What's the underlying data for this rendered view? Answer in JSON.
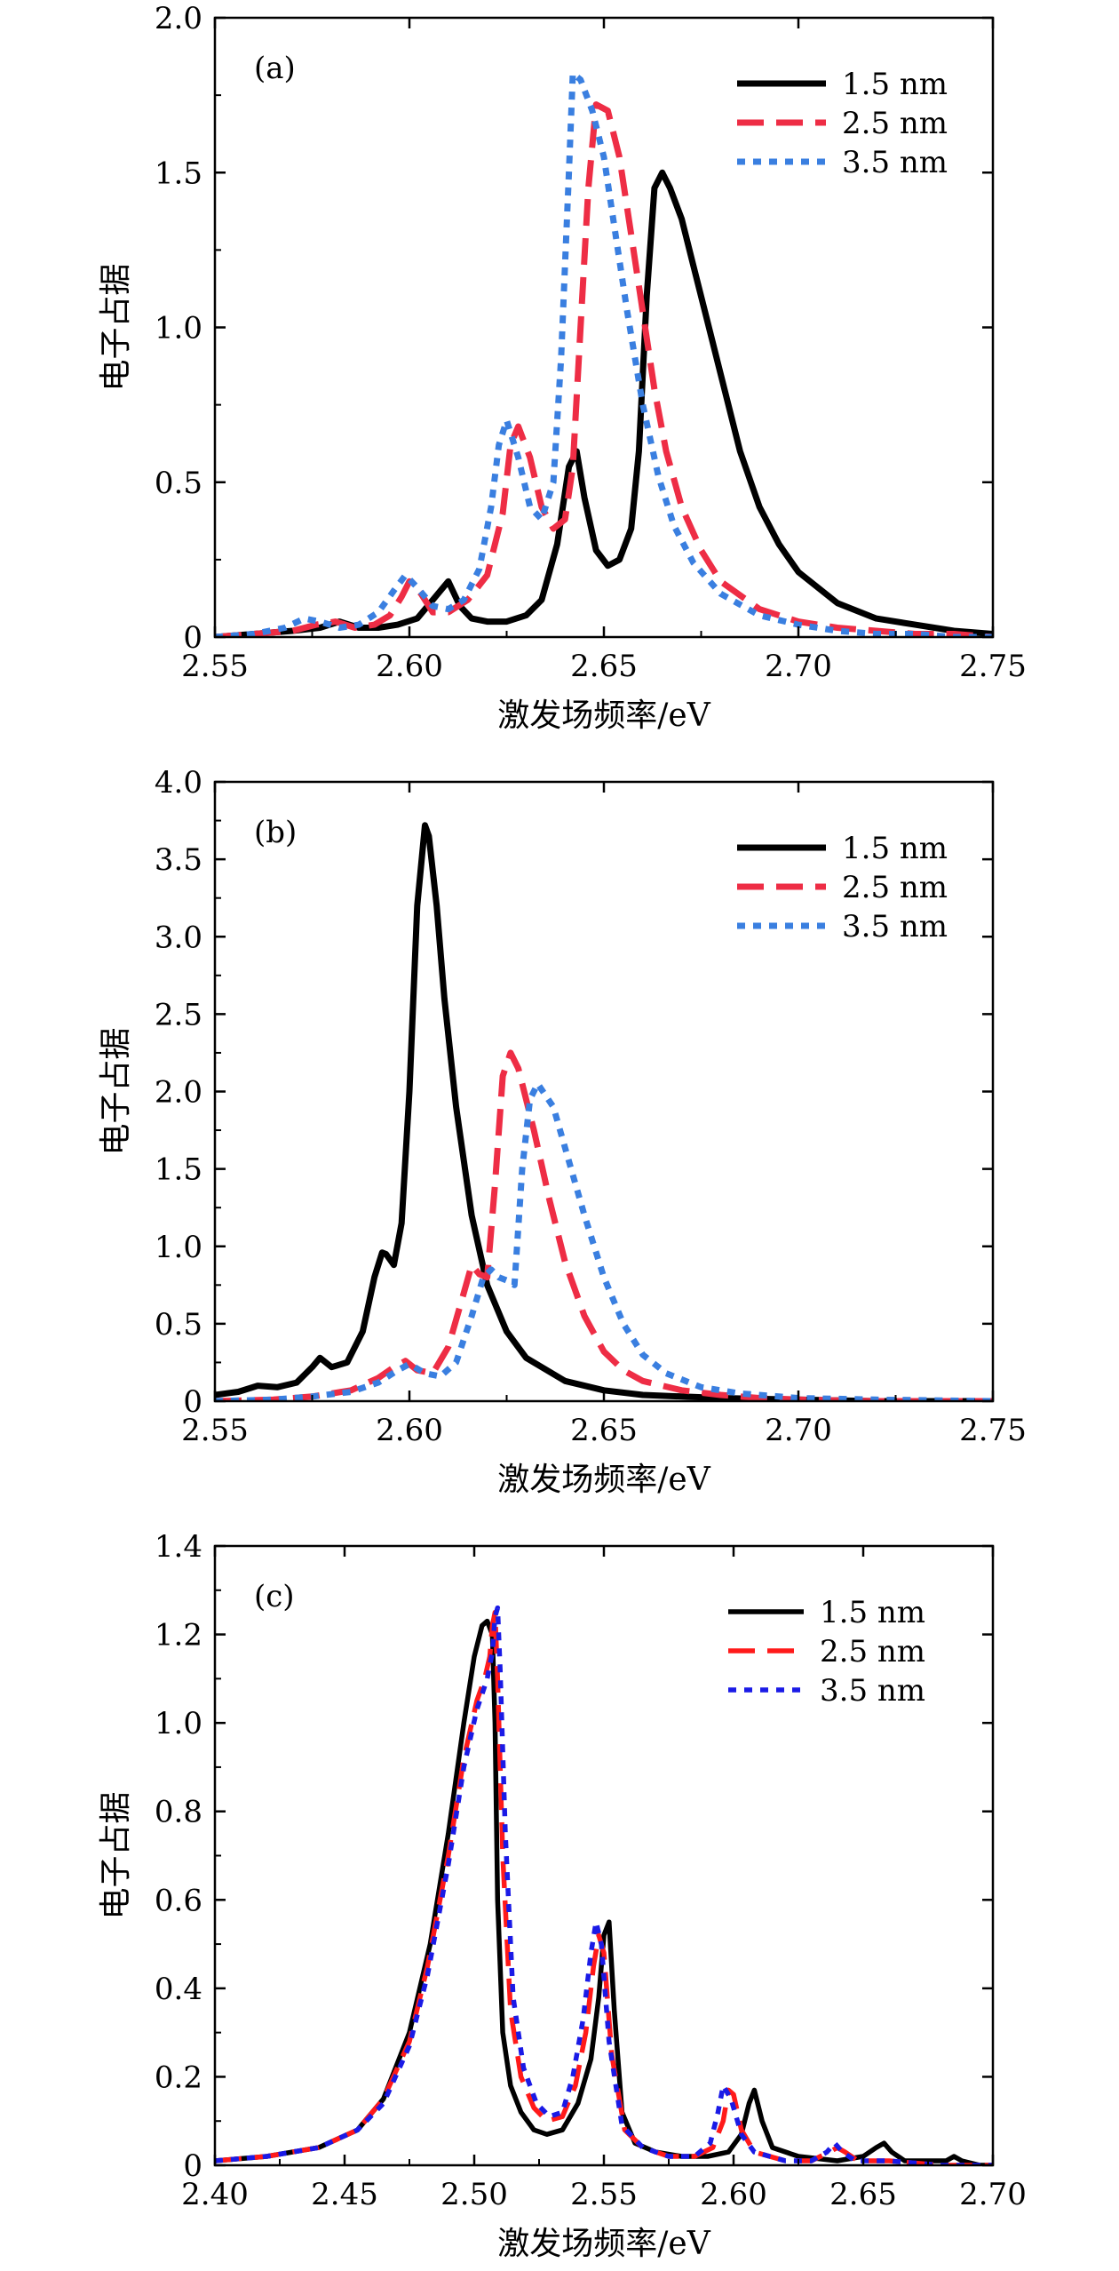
{
  "figure": {
    "colors": {
      "s1": "#000000",
      "s2": "#ee2d45",
      "s3": "#3a7fe0",
      "s2c": "#ff1a1a",
      "s3c": "#1a1ae6"
    }
  },
  "chart_data": [
    {
      "type": "line",
      "panel_label": "(a)",
      "xlabel": "激发场频率/eV",
      "ylabel": "电子占据",
      "xlim": [
        2.55,
        2.75
      ],
      "ylim": [
        0,
        2.0
      ],
      "xticks": [
        2.55,
        2.6,
        2.65,
        2.7,
        2.75
      ],
      "xtick_labels": [
        "2.55",
        "2.60",
        "2.65",
        "2.70",
        "2.75"
      ],
      "yticks": [
        0,
        0.5,
        1.0,
        1.5,
        2.0
      ],
      "ytick_labels": [
        "0",
        "0.5",
        "1.0",
        "1.5",
        "2.0"
      ],
      "legend_position": "top-right",
      "series": [
        {
          "name": "1.5 nm",
          "style": "solid",
          "color": "#000000",
          "x": [
            2.55,
            2.56,
            2.57,
            2.577,
            2.582,
            2.587,
            2.592,
            2.597,
            2.602,
            2.606,
            2.61,
            2.613,
            2.616,
            2.62,
            2.625,
            2.63,
            2.634,
            2.638,
            2.641,
            2.643,
            2.645,
            2.648,
            2.651,
            2.654,
            2.657,
            2.659,
            2.661,
            2.663,
            2.665,
            2.667,
            2.67,
            2.673,
            2.676,
            2.68,
            2.685,
            2.69,
            2.695,
            2.7,
            2.71,
            2.72,
            2.73,
            2.74,
            2.75
          ],
          "y": [
            0.0,
            0.01,
            0.02,
            0.03,
            0.05,
            0.03,
            0.03,
            0.04,
            0.06,
            0.12,
            0.18,
            0.1,
            0.06,
            0.05,
            0.05,
            0.07,
            0.12,
            0.3,
            0.55,
            0.6,
            0.45,
            0.28,
            0.23,
            0.25,
            0.35,
            0.6,
            1.1,
            1.45,
            1.5,
            1.45,
            1.35,
            1.2,
            1.05,
            0.85,
            0.6,
            0.42,
            0.3,
            0.21,
            0.11,
            0.06,
            0.04,
            0.02,
            0.01
          ]
        },
        {
          "name": "2.5 nm",
          "style": "dashed",
          "color": "#ee2d45",
          "x": [
            2.55,
            2.56,
            2.57,
            2.576,
            2.581,
            2.586,
            2.591,
            2.595,
            2.598,
            2.6,
            2.603,
            2.606,
            2.61,
            2.615,
            2.62,
            2.624,
            2.626,
            2.628,
            2.631,
            2.634,
            2.637,
            2.64,
            2.642,
            2.644,
            2.646,
            2.648,
            2.651,
            2.654,
            2.657,
            2.66,
            2.663,
            2.666,
            2.67,
            2.675,
            2.68,
            2.69,
            2.7,
            2.71,
            2.72,
            2.73,
            2.74,
            2.75
          ],
          "y": [
            0.0,
            0.01,
            0.02,
            0.04,
            0.05,
            0.03,
            0.04,
            0.07,
            0.13,
            0.18,
            0.14,
            0.08,
            0.08,
            0.12,
            0.2,
            0.4,
            0.62,
            0.68,
            0.58,
            0.42,
            0.35,
            0.38,
            0.55,
            1.0,
            1.45,
            1.72,
            1.7,
            1.55,
            1.3,
            1.05,
            0.8,
            0.6,
            0.42,
            0.28,
            0.18,
            0.09,
            0.05,
            0.03,
            0.02,
            0.01,
            0.01,
            0.0
          ]
        },
        {
          "name": "3.5 nm",
          "style": "dotted",
          "color": "#3a7fe0",
          "x": [
            2.55,
            2.56,
            2.568,
            2.573,
            2.577,
            2.582,
            2.587,
            2.592,
            2.596,
            2.599,
            2.602,
            2.606,
            2.61,
            2.614,
            2.618,
            2.621,
            2.623,
            2.625,
            2.628,
            2.631,
            2.634,
            2.637,
            2.639,
            2.641,
            2.642,
            2.644,
            2.647,
            2.65,
            2.653,
            2.656,
            2.66,
            2.664,
            2.668,
            2.673,
            2.68,
            2.69,
            2.7,
            2.71,
            2.72,
            2.73,
            2.74,
            2.75
          ],
          "y": [
            0.0,
            0.01,
            0.03,
            0.06,
            0.05,
            0.03,
            0.04,
            0.08,
            0.15,
            0.2,
            0.16,
            0.1,
            0.09,
            0.12,
            0.22,
            0.42,
            0.62,
            0.7,
            0.58,
            0.42,
            0.38,
            0.5,
            0.9,
            1.5,
            1.82,
            1.8,
            1.7,
            1.55,
            1.3,
            1.05,
            0.75,
            0.52,
            0.36,
            0.24,
            0.14,
            0.07,
            0.04,
            0.02,
            0.01,
            0.01,
            0.0,
            0.0
          ]
        }
      ]
    },
    {
      "type": "line",
      "panel_label": "(b)",
      "xlabel": "激发场频率/eV",
      "ylabel": "电子占据",
      "xlim": [
        2.55,
        2.75
      ],
      "ylim": [
        0,
        4.0
      ],
      "xticks": [
        2.55,
        2.6,
        2.65,
        2.7,
        2.75
      ],
      "xtick_labels": [
        "2.55",
        "2.60",
        "2.65",
        "2.70",
        "2.75"
      ],
      "yticks": [
        0,
        0.5,
        1.0,
        1.5,
        2.0,
        2.5,
        3.0,
        3.5,
        4.0
      ],
      "ytick_labels": [
        "0",
        "0.5",
        "1.0",
        "1.5",
        "2.0",
        "2.5",
        "3.0",
        "3.5",
        "4.0"
      ],
      "legend_position": "top-right",
      "series": [
        {
          "name": "1.5 nm",
          "style": "solid",
          "color": "#000000",
          "x": [
            2.55,
            2.556,
            2.561,
            2.566,
            2.571,
            2.575,
            2.577,
            2.58,
            2.584,
            2.588,
            2.591,
            2.593,
            2.594,
            2.596,
            2.598,
            2.6,
            2.602,
            2.604,
            2.605,
            2.607,
            2.609,
            2.612,
            2.616,
            2.62,
            2.625,
            2.63,
            2.64,
            2.65,
            2.66,
            2.68,
            2.7,
            2.72,
            2.75
          ],
          "y": [
            0.04,
            0.06,
            0.1,
            0.09,
            0.12,
            0.22,
            0.28,
            0.22,
            0.25,
            0.45,
            0.8,
            0.96,
            0.95,
            0.88,
            1.15,
            2.0,
            3.2,
            3.72,
            3.65,
            3.2,
            2.6,
            1.9,
            1.2,
            0.75,
            0.45,
            0.28,
            0.13,
            0.07,
            0.04,
            0.02,
            0.01,
            0.0,
            0.0
          ]
        },
        {
          "name": "2.5 nm",
          "style": "dashed",
          "color": "#ee2d45",
          "x": [
            2.55,
            2.565,
            2.575,
            2.585,
            2.592,
            2.596,
            2.599,
            2.602,
            2.606,
            2.61,
            2.614,
            2.616,
            2.618,
            2.62,
            2.622,
            2.624,
            2.626,
            2.628,
            2.632,
            2.636,
            2.64,
            2.645,
            2.65,
            2.655,
            2.66,
            2.67,
            2.68,
            2.69,
            2.7,
            2.72,
            2.75
          ],
          "y": [
            0.0,
            0.01,
            0.03,
            0.07,
            0.15,
            0.22,
            0.26,
            0.2,
            0.18,
            0.35,
            0.7,
            0.88,
            0.82,
            0.8,
            1.4,
            2.1,
            2.25,
            2.15,
            1.75,
            1.3,
            0.9,
            0.55,
            0.32,
            0.2,
            0.13,
            0.07,
            0.04,
            0.02,
            0.01,
            0.0,
            0.0
          ]
        },
        {
          "name": "3.5 nm",
          "style": "dotted",
          "color": "#3a7fe0",
          "x": [
            2.55,
            2.565,
            2.575,
            2.585,
            2.592,
            2.597,
            2.6,
            2.604,
            2.608,
            2.612,
            2.616,
            2.619,
            2.621,
            2.623,
            2.625,
            2.627,
            2.629,
            2.631,
            2.633,
            2.637,
            2.641,
            2.645,
            2.65,
            2.655,
            2.66,
            2.666,
            2.675,
            2.685,
            2.7,
            2.72,
            2.75
          ],
          "y": [
            0.0,
            0.01,
            0.03,
            0.06,
            0.12,
            0.2,
            0.24,
            0.18,
            0.16,
            0.25,
            0.55,
            0.8,
            0.85,
            0.8,
            0.78,
            0.75,
            1.5,
            1.95,
            2.05,
            1.9,
            1.55,
            1.2,
            0.8,
            0.5,
            0.3,
            0.18,
            0.09,
            0.05,
            0.02,
            0.01,
            0.0
          ]
        }
      ]
    },
    {
      "type": "line",
      "panel_label": "(c)",
      "xlabel": "激发场频率/eV",
      "ylabel": "电子占据",
      "xlim": [
        2.4,
        2.7
      ],
      "ylim": [
        0,
        1.4
      ],
      "xticks": [
        2.4,
        2.45,
        2.5,
        2.55,
        2.6,
        2.65,
        2.7
      ],
      "xtick_labels": [
        "2.40",
        "2.45",
        "2.50",
        "2.55",
        "2.60",
        "2.65",
        "2.70"
      ],
      "yticks": [
        0,
        0.2,
        0.4,
        0.6,
        0.8,
        1.0,
        1.2,
        1.4
      ],
      "ytick_labels": [
        "0",
        "0.2",
        "0.4",
        "0.6",
        "0.8",
        "1.0",
        "1.2",
        "1.4"
      ],
      "legend_position": "top-right",
      "series": [
        {
          "name": "1.5 nm",
          "style": "solid",
          "color": "#000000",
          "x": [
            2.4,
            2.42,
            2.44,
            2.455,
            2.465,
            2.475,
            2.483,
            2.49,
            2.496,
            2.5,
            2.503,
            2.505,
            2.507,
            2.508,
            2.509,
            2.511,
            2.514,
            2.518,
            2.523,
            2.528,
            2.534,
            2.54,
            2.545,
            2.548,
            2.55,
            2.552,
            2.554,
            2.557,
            2.562,
            2.57,
            2.58,
            2.59,
            2.598,
            2.603,
            2.606,
            2.608,
            2.611,
            2.615,
            2.625,
            2.64,
            2.65,
            2.655,
            2.658,
            2.661,
            2.666,
            2.675,
            2.682,
            2.685,
            2.688,
            2.695,
            2.7
          ],
          "y": [
            0.01,
            0.02,
            0.04,
            0.08,
            0.15,
            0.3,
            0.5,
            0.75,
            1.0,
            1.15,
            1.22,
            1.23,
            1.2,
            1.0,
            0.6,
            0.3,
            0.18,
            0.12,
            0.08,
            0.07,
            0.08,
            0.14,
            0.24,
            0.38,
            0.52,
            0.55,
            0.35,
            0.12,
            0.05,
            0.03,
            0.02,
            0.02,
            0.03,
            0.07,
            0.14,
            0.17,
            0.1,
            0.04,
            0.02,
            0.01,
            0.02,
            0.04,
            0.05,
            0.03,
            0.01,
            0.01,
            0.01,
            0.02,
            0.01,
            0.0,
            0.0
          ]
        },
        {
          "name": "2.5 nm",
          "style": "dashed",
          "color": "#ff1a1a",
          "x": [
            2.4,
            2.42,
            2.44,
            2.455,
            2.465,
            2.475,
            2.482,
            2.49,
            2.496,
            2.501,
            2.504,
            2.506,
            2.507,
            2.508,
            2.509,
            2.511,
            2.514,
            2.518,
            2.523,
            2.528,
            2.534,
            2.539,
            2.543,
            2.546,
            2.548,
            2.55,
            2.553,
            2.558,
            2.565,
            2.575,
            2.585,
            2.592,
            2.596,
            2.598,
            2.6,
            2.603,
            2.608,
            2.62,
            2.63,
            2.637,
            2.64,
            2.643,
            2.648,
            2.66,
            2.68,
            2.7
          ],
          "y": [
            0.01,
            0.02,
            0.04,
            0.08,
            0.15,
            0.28,
            0.45,
            0.7,
            0.92,
            1.05,
            1.1,
            1.15,
            1.22,
            1.25,
            1.1,
            0.7,
            0.35,
            0.2,
            0.13,
            0.1,
            0.11,
            0.18,
            0.3,
            0.45,
            0.52,
            0.48,
            0.25,
            0.08,
            0.04,
            0.02,
            0.02,
            0.04,
            0.1,
            0.17,
            0.16,
            0.08,
            0.03,
            0.01,
            0.01,
            0.03,
            0.04,
            0.03,
            0.01,
            0.01,
            0.0,
            0.0
          ]
        },
        {
          "name": "3.5 nm",
          "style": "dotted",
          "color": "#1a1ae6",
          "x": [
            2.4,
            2.42,
            2.44,
            2.455,
            2.465,
            2.475,
            2.482,
            2.49,
            2.496,
            2.501,
            2.505,
            2.507,
            2.508,
            2.509,
            2.51,
            2.512,
            2.515,
            2.519,
            2.524,
            2.529,
            2.534,
            2.538,
            2.542,
            2.545,
            2.547,
            2.549,
            2.552,
            2.557,
            2.565,
            2.575,
            2.585,
            2.591,
            2.594,
            2.596,
            2.599,
            2.603,
            2.608,
            2.62,
            2.63,
            2.636,
            2.639,
            2.642,
            2.647,
            2.66,
            2.68,
            2.7
          ],
          "y": [
            0.01,
            0.02,
            0.04,
            0.08,
            0.14,
            0.27,
            0.43,
            0.68,
            0.9,
            1.03,
            1.1,
            1.16,
            1.24,
            1.26,
            1.12,
            0.75,
            0.38,
            0.22,
            0.14,
            0.11,
            0.12,
            0.2,
            0.33,
            0.48,
            0.55,
            0.5,
            0.28,
            0.09,
            0.04,
            0.02,
            0.02,
            0.05,
            0.12,
            0.18,
            0.15,
            0.07,
            0.03,
            0.01,
            0.01,
            0.03,
            0.05,
            0.03,
            0.01,
            0.01,
            0.0,
            0.0
          ]
        }
      ]
    }
  ]
}
